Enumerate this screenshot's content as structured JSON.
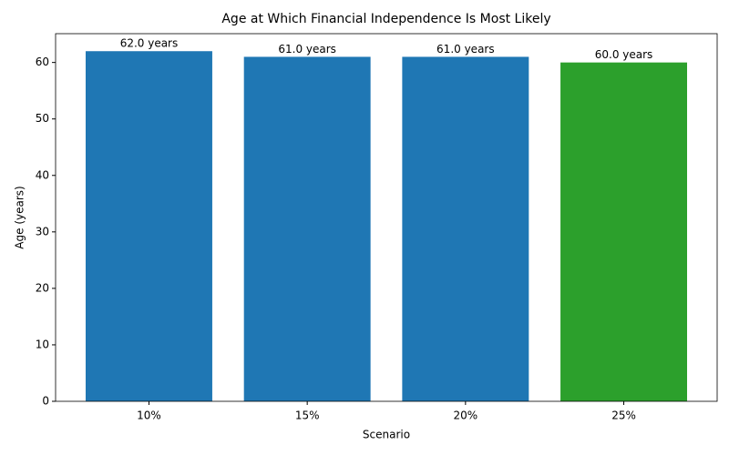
{
  "chart_data": {
    "type": "bar",
    "title": "Age at Which Financial Independence Is Most Likely",
    "x_label": "Scenario",
    "y_label": "Age (years)",
    "categories": [
      "10%",
      "15%",
      "20%",
      "25%"
    ],
    "values": [
      62,
      61,
      61,
      60
    ],
    "value_labels": [
      "62.0 years",
      "61.0 years",
      "61.0 years",
      "60.0 years"
    ],
    "colors": [
      "#1f77b4",
      "#1f77b4",
      "#1f77b4",
      "#2ca02c"
    ],
    "ylim": [
      0,
      65.1
    ],
    "yticks": [
      0,
      10,
      20,
      30,
      40,
      50,
      60
    ],
    "grid": false
  }
}
